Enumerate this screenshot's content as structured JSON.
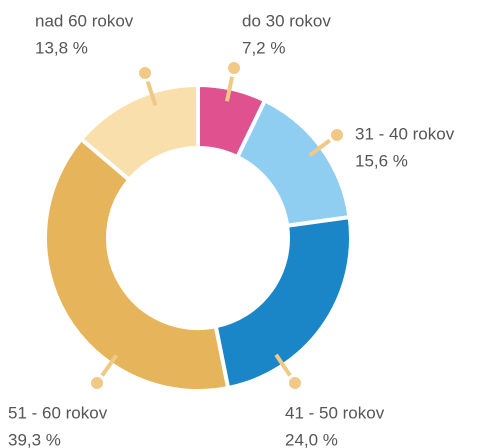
{
  "chart_data": {
    "type": "donut",
    "categories": [
      "do 30 rokov",
      "31 - 40 rokov",
      "41 - 50 rokov",
      "51 - 60 rokov",
      "nad 60 rokov"
    ],
    "values": [
      7.2,
      15.6,
      24.0,
      39.3,
      13.8
    ],
    "value_labels": [
      "7,2 %",
      "15,6 %",
      "24,0 %",
      "39,3 %",
      "13,8 %"
    ],
    "colors": [
      "#e0528f",
      "#8fcef1",
      "#1a86c8",
      "#e6b45a",
      "#f8dfab"
    ]
  }
}
